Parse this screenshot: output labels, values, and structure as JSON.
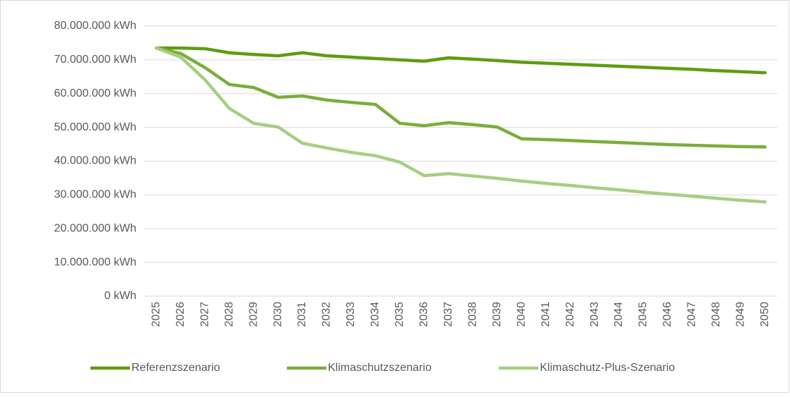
{
  "chart_data": {
    "type": "line",
    "categories": [
      "2025",
      "2026",
      "2027",
      "2028",
      "2029",
      "2030",
      "2031",
      "2032",
      "2033",
      "2034",
      "2035",
      "2036",
      "2037",
      "2038",
      "2039",
      "2040",
      "2041",
      "2042",
      "2043",
      "2044",
      "2045",
      "2046",
      "2047",
      "2048",
      "2049",
      "2050"
    ],
    "series": [
      {
        "name": "Referenzszenario",
        "color": "#5e9c12",
        "values": [
          73500000,
          73500000,
          73300000,
          72100000,
          71600000,
          71200000,
          72100000,
          71200000,
          70800000,
          70400000,
          70000000,
          69600000,
          70600000,
          70200000,
          69800000,
          69300000,
          69000000,
          68700000,
          68400000,
          68100000,
          67800000,
          67500000,
          67200000,
          66800000,
          66500000,
          66200000
        ]
      },
      {
        "name": "Klimaschutzszenario",
        "color": "#79ae3b",
        "values": [
          73500000,
          71900000,
          67700000,
          62700000,
          61800000,
          58900000,
          59300000,
          58100000,
          57400000,
          56800000,
          51200000,
          50500000,
          51400000,
          50800000,
          50100000,
          46600000,
          46400000,
          46100000,
          45800000,
          45500000,
          45200000,
          44900000,
          44700000,
          44500000,
          44300000,
          44200000
        ]
      },
      {
        "name": "Klimaschutz-Plus-Szenario",
        "color": "#a6ce80",
        "values": [
          73500000,
          70800000,
          64100000,
          55600000,
          51200000,
          50100000,
          45300000,
          43900000,
          42600000,
          41600000,
          39700000,
          35700000,
          36300000,
          35600000,
          34900000,
          34100000,
          33400000,
          32800000,
          32100000,
          31500000,
          30800000,
          30200000,
          29600000,
          29000000,
          28400000,
          27900000
        ]
      }
    ],
    "ylim": [
      0,
      80000000
    ],
    "yticks": [
      {
        "value": 0,
        "label": "0 kWh"
      },
      {
        "value": 10000000,
        "label": "10.000.000 kWh"
      },
      {
        "value": 20000000,
        "label": "20.000.000 kWh"
      },
      {
        "value": 30000000,
        "label": "30.000.000 kWh"
      },
      {
        "value": 40000000,
        "label": "40.000.000 kWh"
      },
      {
        "value": 50000000,
        "label": "50.000.000 kWh"
      },
      {
        "value": 60000000,
        "label": "60.000.000 kWh"
      },
      {
        "value": 70000000,
        "label": "70.000.000 kWh"
      },
      {
        "value": 80000000,
        "label": "80.000.000 kWh"
      }
    ],
    "grid": true,
    "legend": "bottom"
  }
}
